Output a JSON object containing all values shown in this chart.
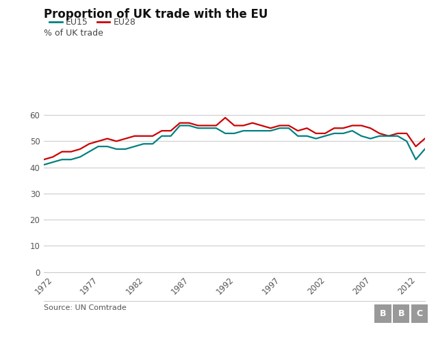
{
  "title": "Proportion of UK trade with the EU",
  "subtitle": "% of UK trade",
  "eu15_color": "#008080",
  "eu28_color": "#CC0000",
  "background_color": "#ffffff",
  "grid_color": "#cccccc",
  "source_text": "Source: UN Comtrade",
  "ylim": [
    0,
    65
  ],
  "yticks": [
    0,
    10,
    20,
    30,
    40,
    50,
    60
  ],
  "xticks": [
    1972,
    1977,
    1982,
    1987,
    1992,
    1997,
    2002,
    2007,
    2012
  ],
  "xlim": [
    1972,
    2014
  ],
  "years": [
    1972,
    1973,
    1974,
    1975,
    1976,
    1977,
    1978,
    1979,
    1980,
    1981,
    1982,
    1983,
    1984,
    1985,
    1986,
    1987,
    1988,
    1989,
    1990,
    1991,
    1992,
    1993,
    1994,
    1995,
    1996,
    1997,
    1998,
    1999,
    2000,
    2001,
    2002,
    2003,
    2004,
    2005,
    2006,
    2007,
    2008,
    2009,
    2010,
    2011,
    2012,
    2013,
    2014
  ],
  "eu15": [
    41,
    42,
    43,
    43,
    44,
    46,
    48,
    48,
    47,
    47,
    48,
    49,
    49,
    52,
    52,
    56,
    56,
    55,
    55,
    55,
    53,
    53,
    54,
    54,
    54,
    54,
    55,
    55,
    52,
    52,
    51,
    52,
    53,
    53,
    54,
    52,
    51,
    52,
    52,
    52,
    50,
    43,
    47
  ],
  "eu28": [
    43,
    44,
    46,
    46,
    47,
    49,
    50,
    51,
    50,
    51,
    52,
    52,
    52,
    54,
    54,
    57,
    57,
    56,
    56,
    56,
    59,
    56,
    56,
    57,
    56,
    55,
    56,
    56,
    54,
    55,
    53,
    53,
    55,
    55,
    56,
    56,
    55,
    53,
    52,
    53,
    53,
    48,
    51
  ],
  "legend_eu15": "EU15",
  "legend_eu28": "EU28",
  "line_width": 1.6,
  "bbc_color": "#999999"
}
